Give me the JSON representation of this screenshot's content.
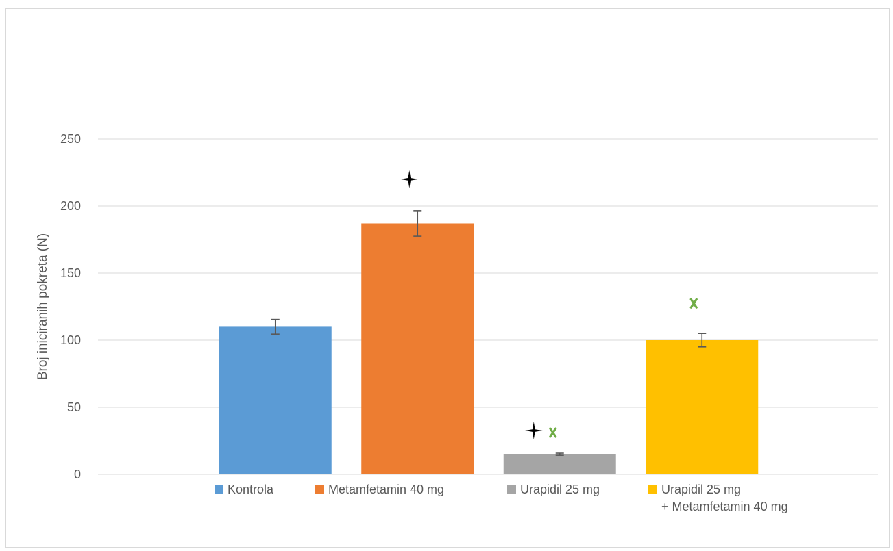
{
  "chart_data": {
    "type": "bar",
    "title": "",
    "xlabel": "",
    "ylabel": "Broj iniciranih pokreta (N)",
    "ylim": [
      0,
      250
    ],
    "yticks": [
      0,
      50,
      100,
      150,
      200,
      250
    ],
    "grid": true,
    "legend_position": "bottom",
    "series": [
      {
        "name": "Kontrola",
        "value": 110,
        "error": 5.5,
        "color": "#5b9bd5",
        "markers": []
      },
      {
        "name": "Metamfetamin 40 mg",
        "value": 187,
        "error": 9.5,
        "color": "#ed7d31",
        "markers": [
          "star"
        ]
      },
      {
        "name": "Urapidil 25 mg",
        "value": 15,
        "error": 0.8,
        "color": "#a5a5a5",
        "markers": [
          "star",
          "cross"
        ]
      },
      {
        "name": "Urapidil 25 mg + Metamfetamin 40 mg",
        "name_lines": [
          "Urapidil 25 mg",
          "+ Metamfetamin 40 mg"
        ],
        "value": 100,
        "error": 5,
        "color": "#ffc000",
        "markers": [
          "cross"
        ]
      }
    ],
    "marker_colors": {
      "star": "#000000",
      "cross": "#70ad47"
    }
  }
}
